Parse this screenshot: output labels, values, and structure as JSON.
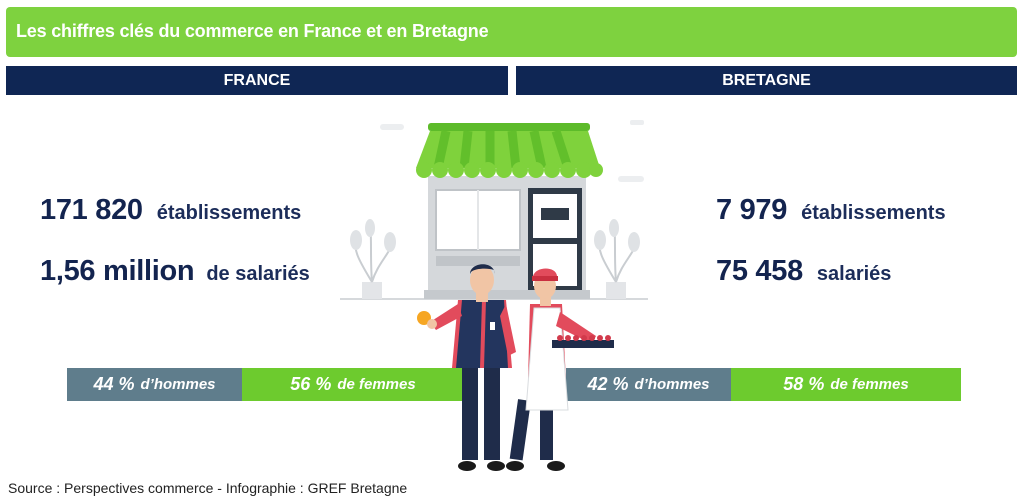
{
  "title": "Les chiffres clés du commerce en France et en Bretagne",
  "france": {
    "header": "FRANCE",
    "establishments_value": "171 820",
    "establishments_label": "établissements",
    "employees_value": "1,56 million",
    "employees_label": "de salariés",
    "men_pct": "44 %",
    "men_label": "d’hommes",
    "women_pct": "56 %",
    "women_label": "de femmes",
    "men_share": 44,
    "women_share": 56
  },
  "bretagne": {
    "header": "BRETAGNE",
    "establishments_value": "7 979",
    "establishments_label": "établissements",
    "employees_value": "75 458",
    "employees_label": "salariés",
    "men_pct": "42 %",
    "men_label": "d’hommes",
    "women_pct": "58 %",
    "women_label": "de femmes",
    "men_share": 42,
    "women_share": 58
  },
  "source": "Source : Perspectives commerce - Infographie : GREF Bretagne",
  "colors": {
    "title_green": "#7ed23f",
    "header_navy": "#0f2654",
    "text_navy": "#13244f",
    "men_slate": "#5f7d8c",
    "women_green": "#6dcb2e"
  },
  "icons": [
    "shop-icon",
    "plant-icon",
    "shopkeeper-man-icon",
    "shopkeeper-woman-icon"
  ]
}
